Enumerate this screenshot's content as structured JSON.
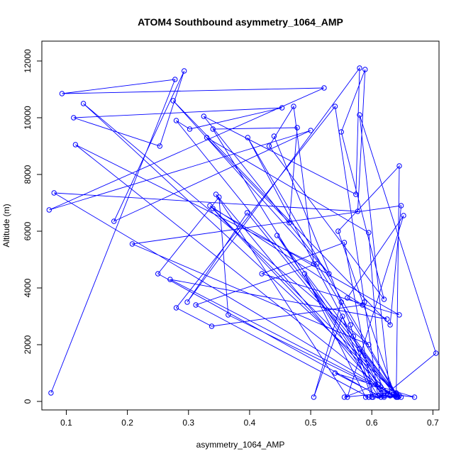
{
  "chart_data": {
    "type": "line",
    "title": "ATOM4 Southbound asymmetry_1064_AMP",
    "xlabel": "asymmetry_1064_AMP",
    "ylabel": "Altitude (m)",
    "xlim": [
      0.06,
      0.71
    ],
    "ylim": [
      -300,
      12700
    ],
    "xticks": [
      0.1,
      0.2,
      0.3,
      0.4,
      0.5,
      0.6,
      0.7
    ],
    "xtick_labels": [
      "0.1",
      "0.2",
      "0.3",
      "0.4",
      "0.5",
      "0.6",
      "0.7"
    ],
    "yticks": [
      0,
      2000,
      4000,
      6000,
      8000,
      10000,
      12000
    ],
    "ytick_labels": [
      "0",
      "2000",
      "4000",
      "6000",
      "8000",
      "10000",
      "12000"
    ],
    "grid": false,
    "line_color": "#0000ff",
    "marker": "open-circle",
    "series": [
      {
        "x": [
          0.075,
          0.278,
          0.093,
          0.522,
          0.072,
          0.5,
          0.178,
          0.293,
          0.253,
          0.112,
          0.453,
          0.302,
          0.28,
          0.64,
          0.128,
          0.595,
          0.208,
          0.648,
          0.63,
          0.275,
          0.53,
          0.325,
          0.574,
          0.58,
          0.298,
          0.396,
          0.641,
          0.08,
          0.577,
          0.589,
          0.55,
          0.62,
          0.432,
          0.472,
          0.505,
          0.115,
          0.63,
          0.335,
          0.585,
          0.338,
          0.28,
          0.54,
          0.588,
          0.61,
          0.34,
          0.478,
          0.465,
          0.33,
          0.595,
          0.615,
          0.345,
          0.56,
          0.652,
          0.56,
          0.625,
          0.27,
          0.638,
          0.545,
          0.645,
          0.64,
          0.51,
          0.312,
          0.595,
          0.63,
          0.58,
          0.705,
          0.62,
          0.397,
          0.642,
          0.445,
          0.62,
          0.645,
          0.34,
          0.645,
          0.42,
          0.555,
          0.602,
          0.57,
          0.565,
          0.44,
          0.55,
          0.505,
          0.552,
          0.6,
          0.615,
          0.25,
          0.35,
          0.365,
          0.64,
          0.59,
          0.49,
          0.61,
          0.555,
          0.625,
          0.58,
          0.643,
          0.635,
          0.67,
          0.54,
          0.612,
          0.648
        ],
        "y": [
          300,
          11350,
          10850,
          11050,
          6750,
          9550,
          6350,
          11650,
          9000,
          10000,
          10350,
          9600,
          9900,
          300,
          10500,
          2000,
          5550,
          6900,
          2700,
          10600,
          4500,
          10050,
          7300,
          11750,
          3500,
          6650,
          150,
          7350,
          6700,
          11700,
          9500,
          3600,
          9000,
          10400,
          4850,
          9050,
          250,
          6900,
          3400,
          2650,
          3300,
          10400,
          3500,
          200,
          9600,
          9650,
          6300,
          9300,
          5950,
          300,
          7300,
          150,
          6550,
          3650,
          2900,
          4300,
          200,
          6000,
          8300,
          250,
          4850,
          3400,
          150,
          200,
          10100,
          1700,
          200,
          9300,
          200,
          5850,
          150,
          200,
          6800,
          3050,
          4500,
          5600,
          150,
          2300,
          2700,
          9350,
          3500,
          150,
          3000,
          150,
          150,
          4500,
          7200,
          3050,
          150,
          150,
          4500,
          600,
          150,
          300,
          1850,
          150,
          250,
          150,
          1000,
          200,
          150
        ]
      }
    ]
  }
}
